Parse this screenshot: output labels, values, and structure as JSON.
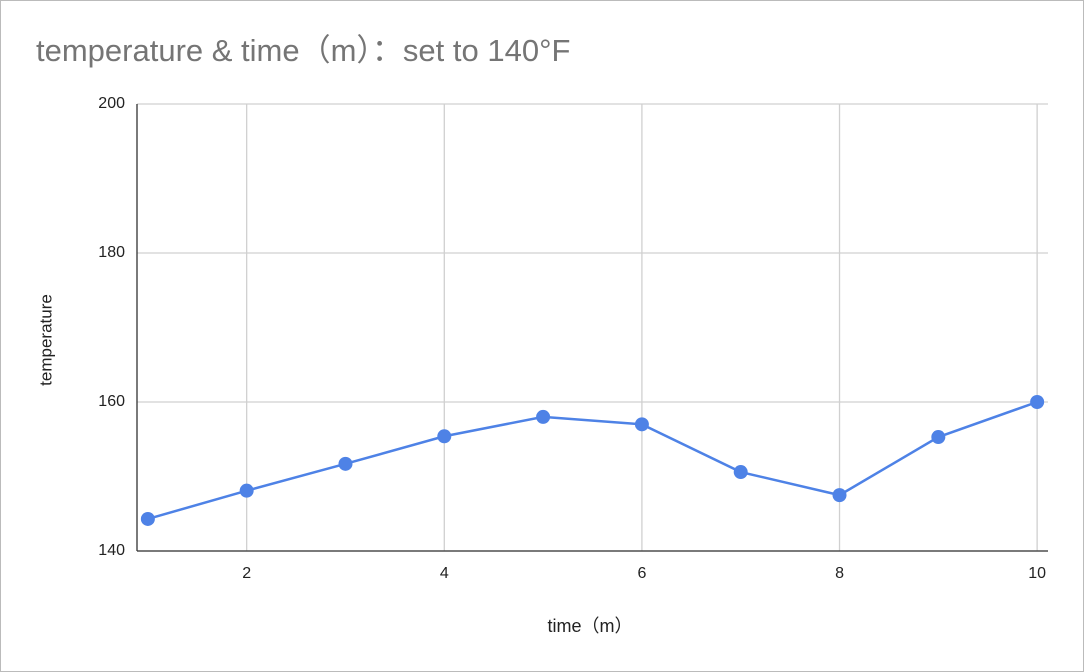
{
  "chart_data": {
    "type": "line",
    "title": "temperature & time（m）：set to 140°F",
    "x_label": "time（m）",
    "y_label": "temperature",
    "x": [
      1,
      2,
      3,
      4,
      5,
      6,
      7,
      8,
      9,
      10
    ],
    "series": [
      {
        "color": "#4e82e6",
        "values": [
          144.3,
          148.1,
          151.7,
          155.4,
          158.0,
          157.0,
          150.6,
          147.5,
          155.3,
          160.0
        ]
      }
    ],
    "xlim": [
      0.89,
      10.11
    ],
    "xticks": [
      2,
      4,
      6,
      8,
      10
    ],
    "ylim": [
      140,
      200
    ],
    "yticks": [
      140,
      160,
      180,
      200
    ],
    "grid": true
  }
}
